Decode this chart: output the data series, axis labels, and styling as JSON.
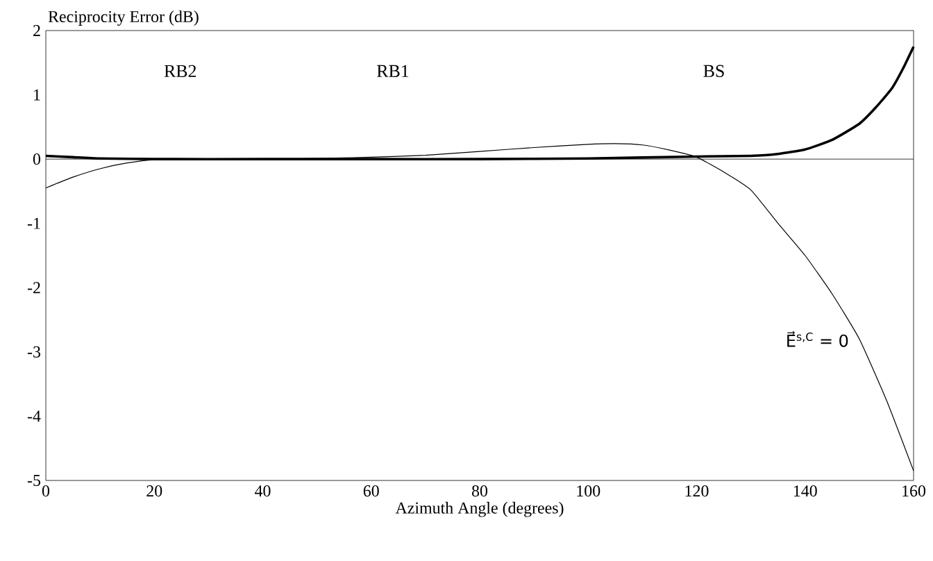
{
  "chart_data": {
    "type": "line",
    "xlabel": "Azimuth Angle (degrees)",
    "ylabel": "Reciprocity Error (dB)",
    "xlim": [
      0,
      160
    ],
    "xticks": [
      0,
      20,
      40,
      60,
      80,
      100,
      120,
      140,
      160
    ],
    "ylim": [
      -5,
      2
    ],
    "yticks": [
      -5,
      -4,
      -3,
      -2,
      -1,
      0,
      1,
      2
    ],
    "series": [
      {
        "color": "#000000",
        "x": [
          0,
          5,
          10,
          20,
          40,
          60,
          80,
          100,
          120,
          130,
          135,
          140,
          145,
          150,
          153,
          156,
          158,
          160
        ],
        "values": [
          0.05,
          0.03,
          0.01,
          0,
          0,
          0,
          0,
          0.01,
          0.04,
          0.05,
          0.08,
          0.15,
          0.3,
          0.55,
          0.8,
          1.1,
          1.4,
          1.75
        ]
      },
      {
        "name": "E⃗$^{s,C}$ = 0",
        "color": "#000000",
        "x": [
          0,
          2,
          5,
          10,
          15,
          20,
          30,
          40,
          50,
          60,
          70,
          80,
          90,
          100,
          105,
          110,
          115,
          120,
          125,
          130,
          135,
          140,
          145,
          150,
          155,
          160
        ],
        "values": [
          -0.45,
          -0.38,
          -0.28,
          -0.15,
          -0.06,
          -0.01,
          0,
          0,
          0.01,
          0.03,
          0.06,
          0.12,
          0.18,
          0.23,
          0.24,
          0.22,
          0.14,
          0.03,
          -0.2,
          -0.48,
          -1.0,
          -1.5,
          -2.1,
          -2.8,
          -3.75,
          -4.85
        ]
      }
    ],
    "ref_lines": [
      {
        "axis": "y",
        "value": 0,
        "color": "#000000"
      }
    ],
    "annotations": [
      "RB2",
      "RB1",
      "BS"
    ],
    "grid": false,
    "marker": "none",
    "line_style": "solid"
  }
}
